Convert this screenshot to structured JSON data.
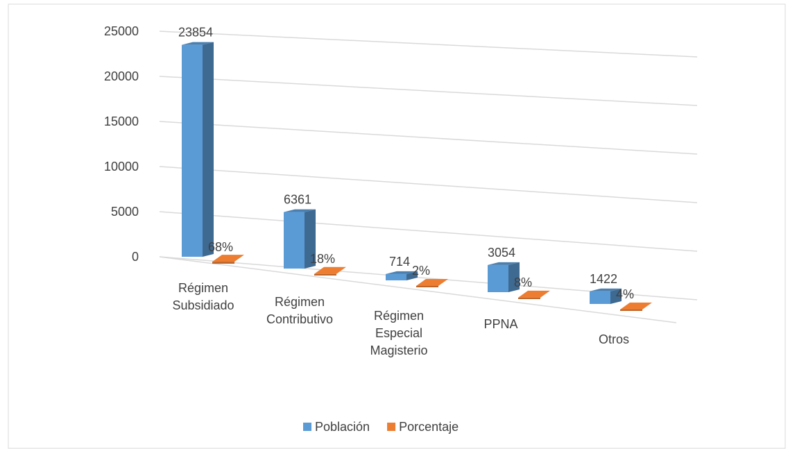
{
  "chart_data": {
    "type": "bar3d",
    "categories": [
      "Régimen Subsidiado",
      "Régimen Contributivo",
      "Régimen Especial Magisterio",
      "PPNA",
      "Otros"
    ],
    "series": [
      {
        "name": "Población",
        "color": "#5b9bd5",
        "values": [
          23854,
          6361,
          714,
          3054,
          1422
        ]
      },
      {
        "name": "Porcentaje",
        "color": "#ed7d31",
        "values": [
          68,
          18,
          2,
          8,
          4
        ],
        "value_labels": [
          "68%",
          "18%",
          "2%",
          "8%",
          "4%"
        ]
      }
    ],
    "ylim": [
      0,
      25000
    ],
    "yticks": [
      0,
      5000,
      10000,
      15000,
      20000,
      25000
    ],
    "grid": true,
    "legend": "bottom"
  }
}
